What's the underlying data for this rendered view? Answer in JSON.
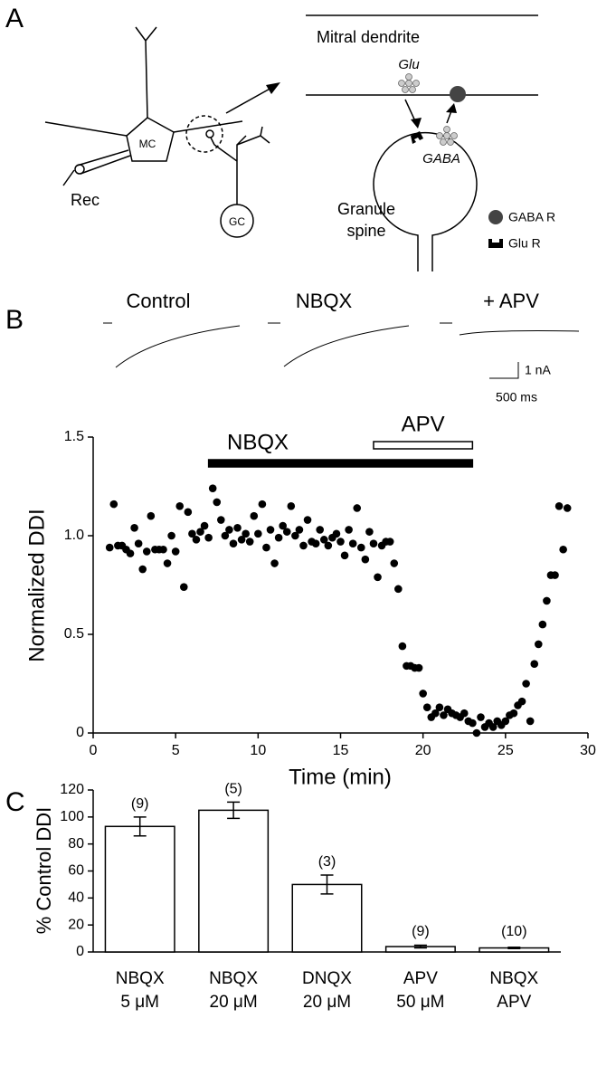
{
  "panels": [
    "A",
    "B",
    "C"
  ],
  "diagram": {
    "mitral": "MC",
    "rec": "Rec",
    "granule_cell": "GC",
    "dendrite": "Mitral dendrite",
    "glu": "Glu",
    "gaba": "GABA",
    "spine": [
      "Granule",
      "spine"
    ],
    "gaba_r": "GABA R",
    "glu_r": "Glu R"
  },
  "traces": {
    "labels": [
      "Control",
      "NBQX",
      "+ APV"
    ],
    "scale_current": "1 nA",
    "scale_time": "500 ms"
  },
  "chart_data": [
    {
      "type": "scatter",
      "xlabel": "Time (min)",
      "ylabel": "Normalized DDI",
      "color": "#000000",
      "x": [
        1,
        1.25,
        1.5,
        1.75,
        2,
        2.25,
        2.5,
        2.75,
        3,
        3.25,
        3.5,
        3.75,
        4,
        4.25,
        4.5,
        4.75,
        5,
        5.25,
        5.5,
        5.75,
        6,
        6.25,
        6.5,
        6.75,
        7,
        7.25,
        7.5,
        7.75,
        8,
        8.25,
        8.5,
        8.75,
        9,
        9.25,
        9.5,
        9.75,
        10,
        10.25,
        10.5,
        10.75,
        11,
        11.25,
        11.5,
        11.75,
        12,
        12.25,
        12.5,
        12.75,
        13,
        13.25,
        13.5,
        13.75,
        14,
        14.25,
        14.5,
        14.75,
        15,
        15.25,
        15.5,
        15.75,
        16,
        16.25,
        16.5,
        16.75,
        17,
        17.25,
        17.5,
        17.75,
        18,
        18.25,
        18.5,
        18.75,
        19,
        19.25,
        19.5,
        19.75,
        20,
        20.25,
        20.5,
        20.75,
        21,
        21.25,
        21.5,
        21.75,
        22,
        22.25,
        22.5,
        22.75,
        23,
        23.25,
        23.5,
        23.75,
        24,
        24.25,
        24.5,
        24.75,
        25,
        25.25,
        25.5,
        25.75,
        26,
        26.25,
        26.5,
        26.75,
        27,
        27.25,
        27.5,
        27.75,
        28,
        28.25,
        28.5,
        28.75
      ],
      "values": [
        0.94,
        1.16,
        0.95,
        0.95,
        0.93,
        0.91,
        1.04,
        0.96,
        0.83,
        0.92,
        1.1,
        0.93,
        0.93,
        0.93,
        0.86,
        1.0,
        0.92,
        1.15,
        0.74,
        1.12,
        1.01,
        0.98,
        1.02,
        1.05,
        0.99,
        1.24,
        1.17,
        1.08,
        1.0,
        1.03,
        0.96,
        1.04,
        0.98,
        1.01,
        0.97,
        1.1,
        1.01,
        1.16,
        0.94,
        1.03,
        0.86,
        0.99,
        1.05,
        1.02,
        1.15,
        1.0,
        1.03,
        0.95,
        1.08,
        0.97,
        0.96,
        1.03,
        0.98,
        0.95,
        0.99,
        1.01,
        0.97,
        0.9,
        1.03,
        0.96,
        1.14,
        0.94,
        0.88,
        1.02,
        0.96,
        0.79,
        0.95,
        0.97,
        0.97,
        0.86,
        0.73,
        0.44,
        0.34,
        0.34,
        0.33,
        0.33,
        0.2,
        0.13,
        0.08,
        0.1,
        0.13,
        0.09,
        0.12,
        0.1,
        0.09,
        0.08,
        0.1,
        0.06,
        0.05,
        0.0,
        0.08,
        0.03,
        0.05,
        0.03,
        0.06,
        0.04,
        0.06,
        0.09,
        0.1,
        0.14,
        0.16,
        0.25,
        0.06,
        0.35,
        0.45,
        0.55,
        0.67,
        0.8,
        0.8,
        1.15,
        0.93,
        1.14
      ],
      "xlim": [
        0,
        30
      ],
      "xticks": [
        0,
        5,
        10,
        15,
        20,
        25,
        30
      ],
      "ylim": [
        0,
        1.5
      ],
      "yticks": [
        0,
        0.5,
        {
          "value": 1,
          "label": "1.0"
        },
        1.5
      ],
      "drug_bars": [
        {
          "label": "NBQX",
          "start": 7,
          "end": 23,
          "filled": true
        },
        {
          "label": "APV",
          "start": 17,
          "end": 23,
          "filled": false
        }
      ]
    },
    {
      "type": "bar",
      "ylabel": "% Control DDI",
      "color": "#ffffff",
      "categories": [
        "NBQX",
        "NBQX",
        "DNQX",
        "APV",
        "NBQX"
      ],
      "sublabels": [
        "5 μM",
        "20 μM",
        "20 μM",
        "50 μM",
        "APV"
      ],
      "values": [
        93,
        105,
        50,
        4,
        3
      ],
      "errors": [
        7,
        6,
        7,
        1,
        0.5
      ],
      "n_labels": [
        "(9)",
        "(5)",
        "(3)",
        "(9)",
        "(10)"
      ],
      "ylim": [
        0,
        120
      ],
      "yticks": [
        0,
        20,
        40,
        60,
        80,
        100,
        120
      ]
    }
  ]
}
